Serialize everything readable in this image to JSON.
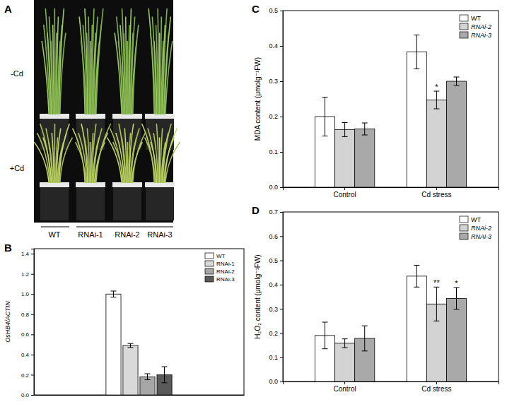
{
  "panel_a": {
    "label": "A",
    "rows": [
      "-Cd",
      "+Cd"
    ],
    "columns": [
      "WT",
      "RNAi-1",
      "RNAi-2",
      "RNAi-3"
    ]
  },
  "chart_data": [
    {
      "type": "bar",
      "title": "B",
      "y_label": "OsHB4/ACTIN",
      "categories": [
        null
      ],
      "series": [
        {
          "name": "WT",
          "color": "#ffffff",
          "values": [
            1.0
          ],
          "errors": [
            0.03
          ]
        },
        {
          "name": "RNAi-1",
          "color": "#d9d9d9",
          "values": [
            0.49
          ],
          "errors": [
            0.02
          ]
        },
        {
          "name": "RNAi-2",
          "color": "#a6a6a6",
          "values": [
            0.18
          ],
          "errors": [
            0.03
          ]
        },
        {
          "name": "RNAi-3",
          "color": "#595959",
          "values": [
            0.2
          ],
          "errors": [
            0.08
          ]
        }
      ],
      "ylim": [
        0,
        1.45
      ],
      "yticks": [
        {
          "value": 0,
          "label": "0.0"
        },
        0.2,
        0.4,
        0.6,
        0.8,
        {
          "value": 1,
          "label": "1.0"
        },
        1.2,
        1.4
      ],
      "legend": "top-right"
    },
    {
      "type": "bar",
      "title": "C",
      "y_label": "MDA content (μmolg⁻¹FW)",
      "categories": [
        "Control",
        "Cd stress"
      ],
      "series": [
        {
          "name": "WT",
          "color": "#ffffff",
          "values": [
            0.2,
            0.383
          ],
          "errors": [
            0.055,
            0.048
          ],
          "annotations": [
            null,
            null
          ]
        },
        {
          "name": "RNAi-2",
          "color": "#d3d3d3",
          "values": [
            0.163,
            0.247
          ],
          "errors": [
            0.02,
            0.025
          ],
          "annotations": [
            null,
            "*"
          ]
        },
        {
          "name": "RNAi-3",
          "color": "#a9a9a9",
          "values": [
            0.165,
            0.3
          ],
          "errors": [
            0.017,
            0.012
          ],
          "annotations": [
            null,
            null
          ]
        }
      ],
      "ylim": [
        0,
        0.5
      ],
      "yticks": [
        {
          "value": 0,
          "label": "0.0"
        },
        0.1,
        0.2,
        0.3,
        0.4,
        0.5
      ],
      "legend": "top-right"
    },
    {
      "type": "bar",
      "title": "D",
      "y_label": "H₂O₂ content (μmolg⁻¹FW)",
      "categories": [
        "Control",
        "Cd stress"
      ],
      "series": [
        {
          "name": "WT",
          "color": "#ffffff",
          "values": [
            0.19,
            0.435
          ],
          "errors": [
            0.055,
            0.045
          ],
          "annotations": [
            null,
            null
          ]
        },
        {
          "name": "RNAi-2",
          "color": "#d3d3d3",
          "values": [
            0.158,
            0.32
          ],
          "errors": [
            0.018,
            0.07
          ],
          "annotations": [
            null,
            "**"
          ]
        },
        {
          "name": "RNAi-3",
          "color": "#a9a9a9",
          "values": [
            0.178,
            0.343
          ],
          "errors": [
            0.052,
            0.045
          ],
          "annotations": [
            null,
            "*"
          ]
        }
      ],
      "ylim": [
        0,
        0.7
      ],
      "yticks": [
        {
          "value": 0,
          "label": "0.0"
        },
        0.1,
        0.2,
        0.3,
        0.4,
        0.5,
        0.6,
        0.7
      ],
      "legend": "top-right"
    }
  ]
}
